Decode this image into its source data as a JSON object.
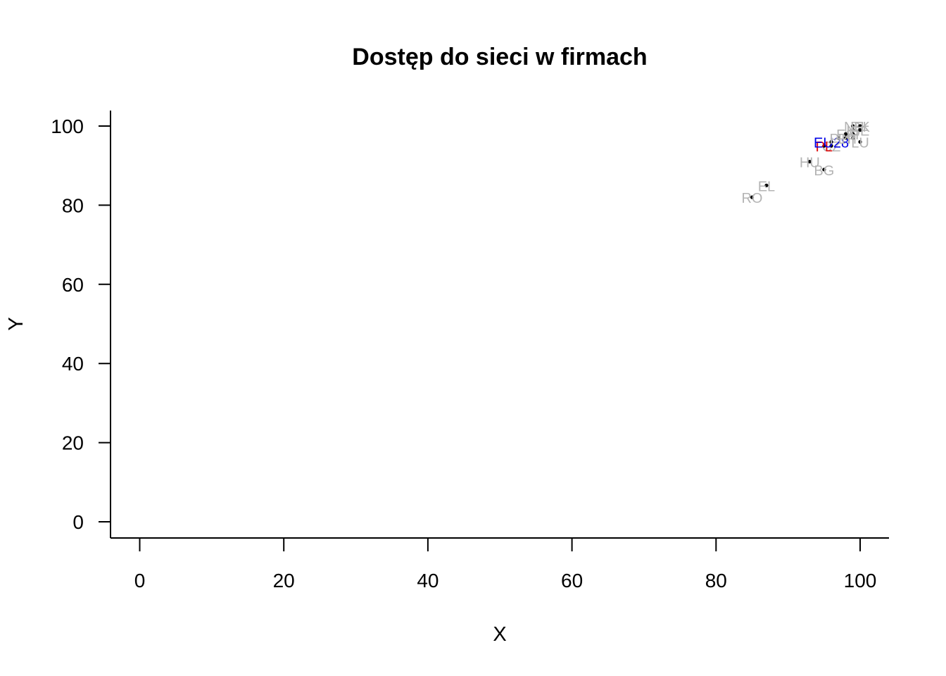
{
  "chart_data": {
    "type": "scatter",
    "title": "Dostęp do sieci w firmach",
    "xlabel": "X",
    "ylabel": "Y",
    "xlim": [
      -4,
      104
    ],
    "ylim": [
      -4,
      104
    ],
    "xticks": [
      0,
      20,
      40,
      60,
      80,
      100
    ],
    "yticks": [
      0,
      20,
      40,
      60,
      80,
      100
    ],
    "grid": false,
    "colors": {
      "other": "#b4b4b4",
      "highlight_pl": "#e00000",
      "highlight_eu": "#0000e6",
      "point": "#000000"
    },
    "points": [
      {
        "label": "RO",
        "x": 85,
        "y": 82,
        "color": "#b4b4b4"
      },
      {
        "label": "EL",
        "x": 87,
        "y": 85,
        "color": "#b4b4b4"
      },
      {
        "label": "HU",
        "x": 93,
        "y": 91,
        "color": "#b4b4b4"
      },
      {
        "label": "BG",
        "x": 95,
        "y": 89,
        "color": "#b4b4b4"
      },
      {
        "label": "CZ",
        "x": 96,
        "y": 95,
        "color": "#b4b4b4"
      },
      {
        "label": "PL",
        "x": 95,
        "y": 95,
        "color": "#e00000"
      },
      {
        "label": "EU28",
        "x": 96,
        "y": 96,
        "color": "#0000e6"
      },
      {
        "label": "PT",
        "x": 97,
        "y": 97,
        "color": "#b4b4b4"
      },
      {
        "label": "LT",
        "x": 98,
        "y": 97,
        "color": "#b4b4b4"
      },
      {
        "label": "IT",
        "x": 99,
        "y": 97,
        "color": "#b4b4b4"
      },
      {
        "label": "LU",
        "x": 100,
        "y": 96,
        "color": "#b4b4b4"
      },
      {
        "label": "AT",
        "x": 99,
        "y": 98,
        "color": "#b4b4b4"
      },
      {
        "label": "ES",
        "x": 98,
        "y": 98,
        "color": "#b4b4b4"
      },
      {
        "label": "IE",
        "x": 99,
        "y": 99,
        "color": "#b4b4b4"
      },
      {
        "label": "DK",
        "x": 100,
        "y": 100,
        "color": "#b4b4b4"
      },
      {
        "label": "FI",
        "x": 100,
        "y": 100,
        "color": "#b4b4b4"
      },
      {
        "label": "NL",
        "x": 99,
        "y": 100,
        "color": "#b4b4b4"
      },
      {
        "label": "SE",
        "x": 100,
        "y": 99,
        "color": "#b4b4b4"
      }
    ]
  }
}
